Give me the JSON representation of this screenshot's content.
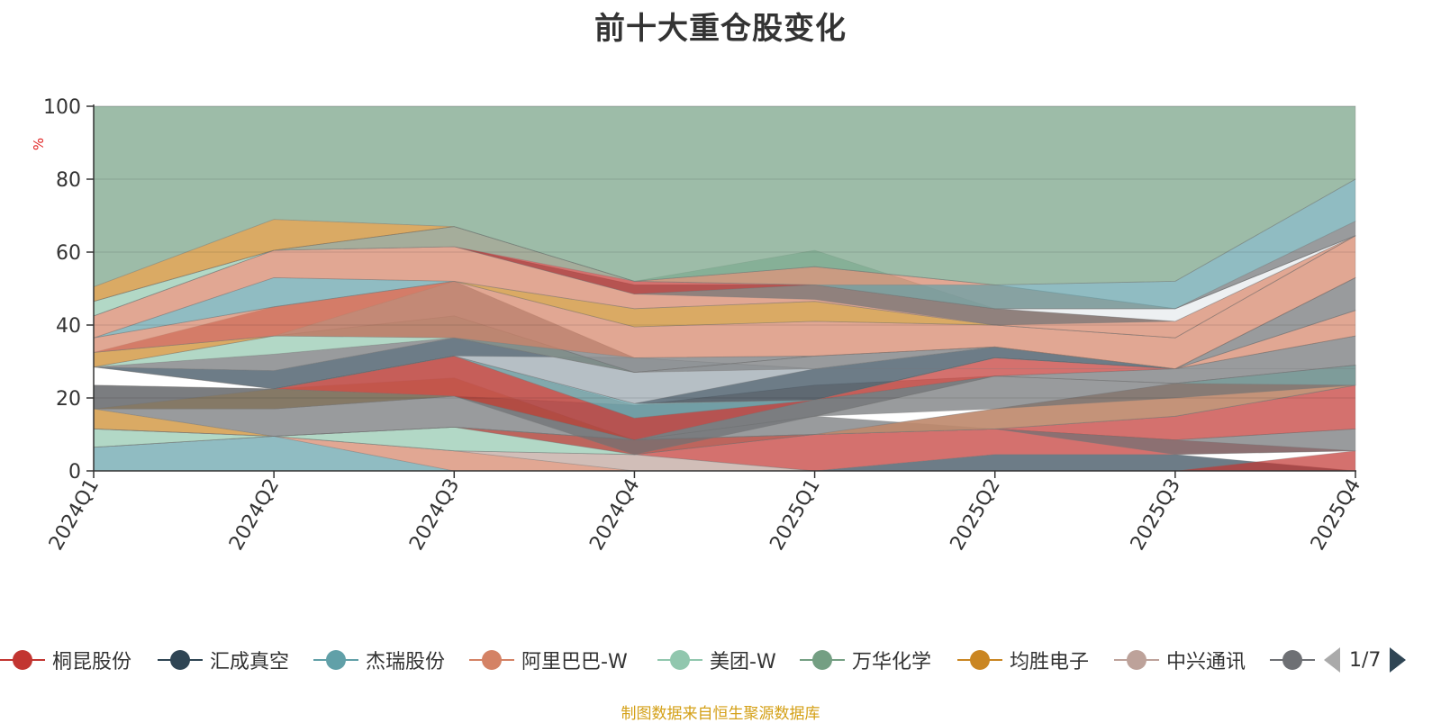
{
  "title": "前十大重仓股变化",
  "source_note": "制图数据来自恒生聚源数据库",
  "legend": {
    "items": [
      {
        "label": "桐昆股份",
        "color": "#c23531"
      },
      {
        "label": "汇成真空",
        "color": "#2f4554"
      },
      {
        "label": "杰瑞股份",
        "color": "#61a0a8"
      },
      {
        "label": "阿里巴巴-W",
        "color": "#d48265"
      },
      {
        "label": "美团-W",
        "color": "#91c7ae"
      },
      {
        "label": "万华化学",
        "color": "#749f83"
      },
      {
        "label": "均胜电子",
        "color": "#ca8622"
      },
      {
        "label": "中兴通讯",
        "color": "#bda29a"
      },
      {
        "label": "",
        "color": "#6e7074"
      }
    ],
    "page_text": "1/7"
  },
  "chart_data": {
    "type": "area",
    "stacked": true,
    "title": "前十大重仓股变化",
    "xlabel": "",
    "ylabel": "%",
    "categories": [
      "2024Q1",
      "2024Q2",
      "2024Q3",
      "2024Q4",
      "2025Q1",
      "2025Q2",
      "2025Q3",
      "2025Q4"
    ],
    "ylim": [
      0,
      100
    ],
    "yticks": [
      0,
      20,
      40,
      60,
      80,
      100
    ],
    "grid": true,
    "legend_position": "bottom",
    "layers": [
      {
        "color": "#61a0a8",
        "lower": [
          0,
          0,
          0,
          0,
          0,
          0,
          0,
          0
        ],
        "upper": [
          6.5,
          9.5,
          0,
          0,
          0,
          0,
          0,
          0
        ]
      },
      {
        "color": "#d48265",
        "lower": [
          0,
          0,
          0,
          0,
          0,
          0,
          0,
          0
        ],
        "upper": [
          0,
          0,
          0,
          0,
          0,
          0,
          0,
          0
        ]
      },
      {
        "color": "#d48265",
        "lower": [
          6.5,
          9.5,
          0,
          0,
          0,
          0,
          0,
          0
        ],
        "upper": [
          6.5,
          9.5,
          5.5,
          0,
          0,
          0,
          0,
          0
        ]
      },
      {
        "color": "#2f4554",
        "lower": [
          0,
          0,
          0,
          0,
          0,
          0,
          0,
          0
        ],
        "upper": [
          0,
          0,
          0,
          0,
          0,
          4.5,
          4.5,
          0
        ]
      },
      {
        "color": "#c23531",
        "lower": [
          0,
          0,
          0,
          0,
          0,
          0,
          0,
          0
        ],
        "upper": [
          0,
          0,
          0,
          0,
          0,
          0,
          0,
          5.5
        ]
      },
      {
        "color": "#bda29a",
        "lower": [
          6.5,
          9.5,
          5.5,
          0,
          0,
          0,
          0,
          0
        ],
        "upper": [
          6.5,
          9.5,
          5.5,
          4.5,
          0,
          0,
          0,
          0
        ]
      },
      {
        "color": "#c23531",
        "lower": [
          6.5,
          9.5,
          5.5,
          4.5,
          0,
          4.5,
          4.5,
          5.5
        ],
        "upper": [
          6.5,
          9.5,
          5.5,
          4.5,
          10,
          11.5,
          8.5,
          5.5
        ]
      },
      {
        "color": "#6e7074",
        "lower": [
          6.5,
          9.5,
          5.5,
          4.5,
          10,
          11.5,
          4.5,
          5.5
        ],
        "upper": [
          6.5,
          9.5,
          5.5,
          4.5,
          10,
          11.5,
          8.5,
          11.5
        ]
      },
      {
        "color": "#91c7ae",
        "lower": [
          6.5,
          9.5,
          5.5,
          4.5,
          10,
          11.5,
          8.5,
          11.5
        ],
        "upper": [
          11.5,
          9.5,
          12,
          8.5,
          10,
          11.5,
          8.5,
          11.5
        ]
      },
      {
        "color": "#6e7074",
        "lower": [
          11.5,
          9.5,
          12,
          4.5,
          10,
          11.5,
          8.5,
          11.5
        ],
        "upper": [
          11.5,
          9.5,
          12,
          4.5,
          10,
          11.5,
          8.5,
          11.5
        ]
      },
      {
        "color": "#c23531",
        "lower": [
          11.5,
          9.5,
          12,
          4.5,
          10,
          11.5,
          8.5,
          11.5
        ],
        "upper": [
          11.5,
          9.5,
          12,
          8.5,
          10,
          11.5,
          15,
          23.5
        ]
      },
      {
        "color": "#ca8622",
        "lower": [
          11.5,
          9.5,
          12,
          8.5,
          10,
          11.5,
          15,
          23.5
        ],
        "upper": [
          17,
          9.5,
          12,
          8.5,
          10,
          11.5,
          15,
          23.5
        ]
      },
      {
        "color": "#6e7074",
        "lower": [
          17,
          9.5,
          12,
          8.5,
          10,
          11.5,
          15,
          23.5
        ],
        "upper": [
          17,
          17,
          20.5,
          8.5,
          15,
          11.5,
          15,
          23.5
        ]
      },
      {
        "color": "#749f83",
        "lower": [
          11.5,
          9.5,
          12,
          8.5,
          10,
          11.5,
          15,
          23.5
        ],
        "upper": [
          11.5,
          9.5,
          12,
          8.5,
          10,
          17,
          24,
          29
        ]
      },
      {
        "color": "#d48265",
        "lower": [
          11.5,
          9.5,
          12,
          8.5,
          10,
          11.5,
          15,
          23.5
        ],
        "upper": [
          11.5,
          9.5,
          12,
          8.5,
          10,
          17,
          24,
          29
        ]
      },
      {
        "color": "#6e7074",
        "lower": [
          17,
          17,
          20.5,
          8.5,
          15,
          17,
          20,
          23.5
        ],
        "upper": [
          23.5,
          22.5,
          20.5,
          8.5,
          19.5,
          26,
          24,
          23.5
        ]
      },
      {
        "color": "#61a0a8",
        "lower": [
          17,
          17,
          20.5,
          8.5,
          15,
          26,
          24,
          23.5
        ],
        "upper": [
          17,
          17,
          20.5,
          8.5,
          15,
          26,
          24,
          29
        ]
      },
      {
        "color": "#ca8622",
        "lower": [
          17,
          17,
          20.5,
          8.5,
          15,
          26,
          24,
          29
        ],
        "upper": [
          17,
          22.5,
          25.5,
          8.5,
          15,
          26,
          24,
          29
        ]
      },
      {
        "color": "#6e7074",
        "lower": [
          17,
          17,
          20.5,
          4.5,
          15,
          26,
          24,
          29
        ],
        "upper": [
          23.5,
          22.5,
          20.5,
          18,
          19.5,
          26,
          28,
          37
        ]
      },
      {
        "color": "#bda29a",
        "lower": [
          23.5,
          22.5,
          20.5,
          18,
          19.5,
          26,
          28,
          37
        ],
        "upper": [
          23.5,
          22.5,
          31.5,
          18,
          23.5,
          26,
          28,
          37
        ]
      },
      {
        "color": "#c23531",
        "lower": [
          23.5,
          22.5,
          20.5,
          8.5,
          19.5,
          26,
          28,
          37
        ],
        "upper": [
          23.5,
          22.5,
          31.5,
          14.5,
          19.5,
          31,
          28,
          37
        ]
      },
      {
        "color": "#61a0a8",
        "lower": [
          23.5,
          22.5,
          31.5,
          14.5,
          19.5,
          31,
          28,
          37
        ],
        "upper": [
          23.5,
          22.5,
          31.5,
          18.5,
          19.5,
          31,
          28,
          37
        ]
      },
      {
        "color": "#d48265",
        "lower": [
          23.5,
          22.5,
          31.5,
          18.5,
          19.5,
          31,
          28,
          37
        ],
        "upper": [
          23.5,
          22.5,
          31.5,
          18.5,
          19.5,
          31,
          28,
          44
        ]
      },
      {
        "color": "#ffffff",
        "lower": [
          23.5,
          22.5,
          31.5,
          18.5,
          19.5,
          31,
          28,
          44
        ],
        "upper": [
          28.5,
          22.5,
          31.5,
          18.5,
          19.5,
          31,
          28,
          44
        ]
      },
      {
        "color": "#2f4554",
        "lower": [
          28.5,
          22.5,
          31.5,
          18.5,
          19.5,
          31,
          28,
          44
        ],
        "upper": [
          28.5,
          27.5,
          36.5,
          27,
          28,
          34,
          28,
          44
        ]
      },
      {
        "color": "#d6dbe0",
        "lower": [
          28.5,
          22.5,
          31.5,
          18.5,
          28,
          28,
          28,
          28
        ],
        "upper": [
          28.5,
          22.5,
          31.5,
          31,
          28,
          28,
          28,
          28
        ]
      },
      {
        "color": "#6e7074",
        "lower": [
          28.5,
          27.5,
          36.5,
          27,
          28,
          34,
          28,
          44
        ],
        "upper": [
          28.5,
          32,
          36.5,
          27,
          31.5,
          34,
          28,
          53
        ]
      },
      {
        "color": "#91c7ae",
        "lower": [
          28.5,
          32,
          36.5,
          27,
          31.5,
          34,
          28,
          53
        ],
        "upper": [
          28.5,
          37,
          42.5,
          27,
          31.5,
          34,
          28,
          53
        ]
      },
      {
        "color": "#749f83",
        "lower": [
          28.5,
          37,
          42.5,
          27,
          31.5,
          34,
          28,
          53
        ],
        "upper": [
          28.5,
          37,
          42.5,
          27,
          31.5,
          34,
          28,
          53
        ]
      },
      {
        "color": "#ca8622",
        "lower": [
          28.5,
          37,
          42.5,
          27,
          31.5,
          34,
          28,
          53
        ],
        "upper": [
          32.5,
          37,
          42.5,
          27,
          31.5,
          34,
          28,
          53
        ]
      },
      {
        "color": "#6e7074",
        "lower": [
          32.5,
          37,
          36.5,
          27,
          31.5,
          34,
          28,
          53
        ],
        "upper": [
          32.5,
          37,
          52,
          31,
          31.5,
          34,
          28,
          53
        ]
      },
      {
        "color": "#c23531",
        "lower": [
          32.5,
          37,
          52,
          31,
          31.5,
          34,
          28,
          53
        ],
        "upper": [
          32.5,
          45,
          52,
          31,
          31.5,
          34,
          28,
          53
        ]
      },
      {
        "color": "#d48265",
        "lower": [
          32.5,
          37,
          36.5,
          31,
          31.5,
          34,
          28,
          53
        ],
        "upper": [
          36.5,
          45,
          52,
          39.5,
          41,
          40,
          36.5,
          64.5
        ]
      },
      {
        "color": "#61a0a8",
        "lower": [
          36.5,
          45,
          52,
          39.5,
          41,
          40,
          36.5,
          64.5
        ],
        "upper": [
          36.5,
          53,
          52,
          39.5,
          41,
          40,
          36.5,
          64.5
        ]
      },
      {
        "color": "#ca8622",
        "lower": [
          36.5,
          45,
          52,
          39.5,
          41,
          40,
          36.5,
          64.5
        ],
        "upper": [
          36.5,
          45,
          52,
          44.5,
          46.5,
          40,
          36.5,
          64.5
        ]
      },
      {
        "color": "#6e7074",
        "lower": [
          36.5,
          53,
          52,
          44.5,
          46.5,
          40,
          36.5,
          64.5
        ],
        "upper": [
          36.5,
          53,
          52,
          44.5,
          46.5,
          40,
          36.5,
          64.5
        ]
      },
      {
        "color": "#d48265",
        "lower": [
          36.5,
          53,
          52,
          44.5,
          46.5,
          40,
          36.5,
          64.5
        ],
        "upper": [
          42.5,
          60.5,
          61.5,
          48.5,
          51,
          44.5,
          41,
          64.5
        ]
      },
      {
        "color": "#6e7074",
        "lower": [
          42.5,
          60.5,
          61.5,
          48.5,
          47,
          40,
          41,
          64.5
        ],
        "upper": [
          42.5,
          60.5,
          61.5,
          51,
          51,
          44.5,
          41,
          64.5
        ]
      },
      {
        "color": "#e6e9ec",
        "lower": [
          42.5,
          60.5,
          61.5,
          51,
          51,
          44.5,
          41,
          64.5
        ],
        "upper": [
          42.5,
          60.5,
          61.5,
          51,
          51,
          44.5,
          44.5,
          64.5
        ]
      },
      {
        "color": "#c23531",
        "lower": [
          42.5,
          60.5,
          61.5,
          48.5,
          51,
          44.5,
          44.5,
          64.5
        ],
        "upper": [
          42.5,
          60.5,
          67,
          52,
          51,
          44.5,
          44.5,
          64.5
        ]
      },
      {
        "color": "#91c7ae",
        "lower": [
          42.5,
          60.5,
          61.5,
          52,
          51,
          44.5,
          44.5,
          64.5
        ],
        "upper": [
          46.5,
          60.5,
          67,
          52,
          60.5,
          44.5,
          44.5,
          64.5
        ]
      },
      {
        "color": "#d48265",
        "lower": [
          46.5,
          60.5,
          67,
          52,
          51,
          44.5,
          44.5,
          64.5
        ],
        "upper": [
          46.5,
          60.5,
          67,
          52,
          56,
          51,
          44.5,
          64.5
        ]
      },
      {
        "color": "#6e7074",
        "lower": [
          46.5,
          60.5,
          67,
          52,
          56,
          51,
          44.5,
          64.5
        ],
        "upper": [
          46.5,
          60.5,
          67,
          52,
          56,
          51,
          44.5,
          68.5
        ]
      },
      {
        "color": "#61a0a8",
        "lower": [
          46.5,
          60.5,
          67,
          52,
          51,
          44.5,
          44.5,
          68.5
        ],
        "upper": [
          46.5,
          60.5,
          67,
          52,
          51,
          51,
          52,
          80
        ]
      },
      {
        "color": "#ca8622",
        "lower": [
          46.5,
          60.5,
          67,
          52,
          56,
          51,
          52,
          80
        ],
        "upper": [
          50.5,
          69,
          67,
          52,
          56,
          51,
          52,
          80
        ]
      },
      {
        "color": "#749f83",
        "lower": [
          50.5,
          69,
          67,
          52,
          56,
          51,
          52,
          80
        ],
        "upper": [
          100,
          100,
          100,
          100,
          100,
          100,
          100,
          100
        ]
      }
    ]
  }
}
